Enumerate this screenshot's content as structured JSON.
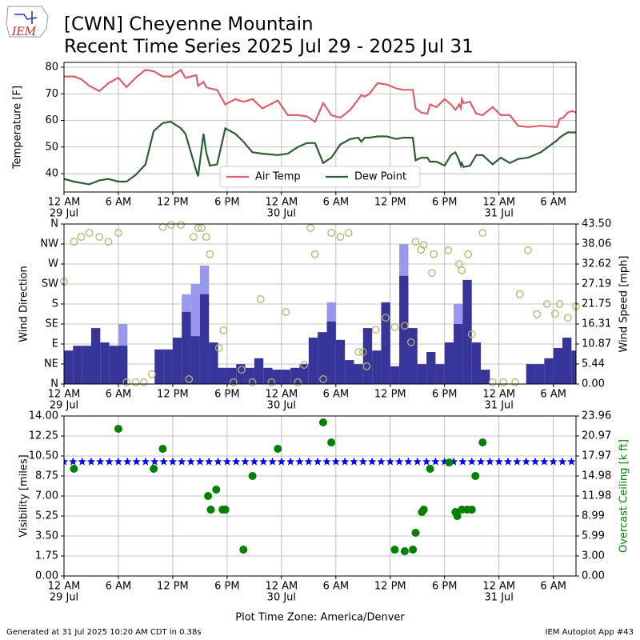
{
  "header": {
    "title": "[CWN] Cheyenne Mountain",
    "subtitle": "Recent Time Series 2025 Jul 29 - 2025 Jul 31",
    "logo": "IEM"
  },
  "footer": {
    "left": "Generated at 31 Jul 2025 10:20 AM CDT in 0.38s",
    "right": "IEM Autoplot App #43"
  },
  "chart_data": [
    {
      "type": "line",
      "ylabel": "Temperature [F]",
      "legend": "lower center",
      "grid": true,
      "xlim": [
        0,
        56.5
      ],
      "ylim": [
        33.1,
        81.8
      ],
      "yticks": [
        40,
        50,
        60,
        70,
        80
      ],
      "xticks": [
        {
          "value": 0,
          "label": "12 AM"
        },
        {
          "value": 6,
          "label": "6 AM"
        },
        {
          "value": 12,
          "label": "12 PM"
        },
        {
          "value": 18,
          "label": "6 PM"
        },
        {
          "value": 24,
          "label": "12 AM"
        },
        {
          "value": 30,
          "label": "6 AM"
        },
        {
          "value": 36,
          "label": "12 PM"
        },
        {
          "value": 42,
          "label": "6 PM"
        },
        {
          "value": 48,
          "label": "12 AM"
        },
        {
          "value": 54,
          "label": "6 AM"
        }
      ],
      "xdates": [
        {
          "value": 0,
          "label": "29 Jul"
        },
        {
          "value": 24,
          "label": "30 Jul"
        },
        {
          "value": 48,
          "label": "31 Jul"
        }
      ],
      "x": [
        0,
        1.1,
        1.9,
        2.8,
        3.9,
        4.9,
        6,
        6.9,
        7.9,
        9,
        9.9,
        10.9,
        11.8,
        12.9,
        13.4,
        14.6,
        14.8,
        15.4,
        15.7,
        16.1,
        16.9,
        17.8,
        18.9,
        19.8,
        20.8,
        21.9,
        23.6,
        24.7,
        25.8,
        26.8,
        27.7,
        28.6,
        29.5,
        30.5,
        31.6,
        32.5,
        32.8,
        33.2,
        33.7,
        34.6,
        35.6,
        36.7,
        37.4,
        38.5,
        38.8,
        39.4,
        40.1,
        40.4,
        41.1,
        42,
        42.7,
        43.2,
        43.6,
        43.8,
        43.9,
        44.1,
        44.8,
        45.5,
        46.2,
        47.3,
        48.2,
        49.2,
        50.1,
        51.2,
        52.6,
        54.4,
        54.7,
        55.1,
        55.6,
        56.1,
        56.5
      ],
      "series": [
        {
          "name": "Air Temp",
          "color": "#d9606a",
          "values": [
            76.5,
            76.5,
            75.5,
            73,
            71,
            74,
            76,
            72.5,
            76,
            79,
            78.5,
            76.5,
            76.5,
            79,
            76,
            77,
            73,
            74.5,
            72.5,
            72,
            71.5,
            66,
            68,
            67,
            68,
            64.5,
            67.5,
            62,
            62,
            61.5,
            59.5,
            66.5,
            62,
            61,
            64,
            68,
            69.5,
            69,
            70,
            74,
            73.5,
            72,
            71.5,
            71.5,
            64.5,
            63,
            62.5,
            66,
            65,
            68,
            66,
            64,
            66,
            64.5,
            68,
            66.5,
            67,
            62.5,
            62,
            65,
            62,
            62,
            58,
            57.5,
            58,
            57.5,
            60.5,
            61,
            63,
            63.5,
            63
          ]
        },
        {
          "name": "Dew Point",
          "color": "#2e5e30",
          "values": [
            38,
            37,
            36.5,
            36,
            37.5,
            38,
            37,
            37,
            39.5,
            43.5,
            56,
            59,
            59.5,
            57,
            55,
            41,
            39,
            55,
            48,
            43,
            43.5,
            57,
            55,
            52,
            48,
            47.5,
            47,
            47.5,
            50,
            51.5,
            51.5,
            44,
            46,
            51,
            53,
            53.5,
            52,
            53.5,
            53.5,
            54,
            54,
            53,
            53.5,
            53.5,
            45,
            46,
            46,
            44.5,
            44.5,
            43,
            47,
            48,
            45,
            43,
            44,
            42.5,
            43,
            47,
            47,
            43.5,
            46,
            44,
            45.5,
            46,
            48,
            52.5,
            53.5,
            54.5,
            55.5,
            55.5,
            55.5
          ]
        }
      ]
    },
    {
      "type": "bar",
      "ylabel": "Wind Direction",
      "y2label": "Wind Speed [mph]",
      "grid": true,
      "xlim": [
        0,
        56.5
      ],
      "ylim": [
        0,
        360
      ],
      "y2lim": [
        0,
        43.5
      ],
      "yticks": [
        {
          "value": 0,
          "label": "N"
        },
        {
          "value": 45,
          "label": "NE"
        },
        {
          "value": 90,
          "label": "E"
        },
        {
          "value": 135,
          "label": "SE"
        },
        {
          "value": 180,
          "label": "S"
        },
        {
          "value": 225,
          "label": "SW"
        },
        {
          "value": 270,
          "label": "W"
        },
        {
          "value": 315,
          "label": "NW"
        },
        {
          "value": 360,
          "label": "N"
        }
      ],
      "y2ticks": [
        {
          "value": 0,
          "label": "0.00"
        },
        {
          "value": 5.44,
          "label": "5.44"
        },
        {
          "value": 10.87,
          "label": "10.87"
        },
        {
          "value": 16.31,
          "label": "16.31"
        },
        {
          "value": 21.75,
          "label": "21.75"
        },
        {
          "value": 27.19,
          "label": "27.19"
        },
        {
          "value": 32.62,
          "label": "32.62"
        },
        {
          "value": 38.06,
          "label": "38.06"
        },
        {
          "value": 43.5,
          "label": "43.50"
        }
      ],
      "xticks": [
        {
          "value": 0,
          "label": "12 AM"
        },
        {
          "value": 6,
          "label": "6 AM"
        },
        {
          "value": 12,
          "label": "12 PM"
        },
        {
          "value": 18,
          "label": "6 PM"
        },
        {
          "value": 24,
          "label": "12 AM"
        },
        {
          "value": 30,
          "label": "6 AM"
        },
        {
          "value": 36,
          "label": "12 PM"
        },
        {
          "value": 42,
          "label": "6 PM"
        },
        {
          "value": 48,
          "label": "12 AM"
        },
        {
          "value": 54,
          "label": "6 AM"
        }
      ],
      "xdates": [
        {
          "value": 0,
          "label": "29 Jul"
        },
        {
          "value": 24,
          "label": "30 Jul"
        },
        {
          "value": 48,
          "label": "31 Jul"
        }
      ],
      "x": [
        0,
        1,
        2,
        3,
        4,
        5,
        6,
        7,
        8,
        9,
        10,
        11,
        12,
        13,
        14,
        15,
        16,
        17,
        18,
        19,
        20,
        21,
        22,
        23,
        24,
        25,
        26,
        27,
        28,
        29,
        30,
        31,
        32,
        33,
        34,
        35,
        36,
        37,
        38,
        39,
        40,
        41,
        42,
        43,
        44,
        45,
        46,
        47,
        48,
        49,
        50,
        51,
        52,
        53,
        54,
        55,
        56
      ],
      "series": [
        {
          "color": "#9a98ee",
          "axis": "y2",
          "values": [
            null,
            null,
            null,
            null,
            null,
            null,
            16.3,
            null,
            null,
            null,
            null,
            null,
            null,
            24.4,
            27.2,
            32.2,
            null,
            null,
            null,
            null,
            null,
            null,
            null,
            null,
            null,
            null,
            null,
            null,
            null,
            22.2,
            null,
            null,
            null,
            null,
            null,
            null,
            null,
            38,
            null,
            null,
            null,
            null,
            null,
            21.8,
            null,
            null,
            null,
            null,
            null,
            null,
            null,
            null,
            null,
            null,
            null,
            null,
            null
          ]
        },
        {
          "color": "#373599",
          "axis": "y2",
          "values": [
            9.1,
            10.4,
            10.4,
            15.2,
            11.3,
            10.4,
            10.4,
            0,
            0,
            0,
            9.4,
            9.4,
            12.6,
            19.6,
            13,
            24.4,
            11.3,
            4.4,
            4.4,
            5.4,
            4.4,
            7,
            4.4,
            3.9,
            3.9,
            4.4,
            5.4,
            12.6,
            14.1,
            17,
            12,
            6.5,
            5.4,
            15.2,
            9.1,
            22.2,
            4.8,
            29.4,
            15.2,
            5.4,
            8.7,
            5.4,
            11.3,
            16.3,
            28.3,
            11.3,
            3.9,
            0,
            0,
            0,
            0,
            5.4,
            5.4,
            7,
            9.8,
            12.6,
            9.1
          ]
        }
      ],
      "scatter": {
        "color": "#b3b56e",
        "x": [
          0,
          1.1,
          1.9,
          2.8,
          3.9,
          4.9,
          6,
          6.9,
          7.9,
          8.8,
          9.7,
          10.9,
          11.8,
          12.9,
          13.8,
          14.3,
          14.8,
          15.2,
          15.7,
          16.1,
          17.1,
          17.6,
          18.7,
          19.6,
          20.8,
          21.7,
          22.9,
          24.5,
          25.8,
          26.5,
          27.2,
          27.7,
          28.6,
          29.5,
          30.5,
          31.4,
          32.5,
          33,
          33.4,
          34.4,
          35.5,
          36.5,
          37.6,
          38.3,
          38.8,
          39.4,
          39.7,
          40.6,
          40.8,
          42.4,
          43.6,
          43.9,
          44.6,
          45,
          46.2,
          47.3,
          48.5,
          49.8,
          50.3,
          51.2,
          52.2,
          53.3,
          54.2,
          54.7,
          55.6,
          56.5
        ],
        "values": [
          230,
          320,
          331,
          340,
          331,
          320,
          340,
          4,
          4,
          4,
          22,
          353,
          358,
          358,
          11,
          331,
          351,
          351,
          331,
          292,
          81,
          121,
          4,
          32,
          4,
          191,
          4,
          162,
          4,
          43,
          351,
          292,
          11,
          340,
          331,
          340,
          72,
          72,
          40,
          122,
          149,
          128,
          131,
          94,
          320,
          302,
          313,
          250,
          292,
          301,
          270,
          256,
          292,
          112,
          340,
          4,
          4,
          4,
          202,
          301,
          157,
          180,
          158,
          180,
          149,
          175
        ]
      }
    },
    {
      "type": "scatter",
      "ylabel": "Visibility [miles]",
      "y2label": "Overcast Ceiling [k ft]",
      "xlabel": "Plot Time Zone: America/Denver",
      "grid": true,
      "xlim": [
        0,
        56.5
      ],
      "ylim": [
        0,
        14
      ],
      "y2lim": [
        0,
        23.96
      ],
      "yticks": [
        {
          "value": 0,
          "label": "0.00"
        },
        {
          "value": 1.75,
          "label": "1.75"
        },
        {
          "value": 3.5,
          "label": "3.50"
        },
        {
          "value": 5.25,
          "label": "5.25"
        },
        {
          "value": 7,
          "label": "7.00"
        },
        {
          "value": 8.75,
          "label": "8.75"
        },
        {
          "value": 10.5,
          "label": "10.50"
        },
        {
          "value": 12.25,
          "label": "12.25"
        },
        {
          "value": 14,
          "label": "14.00"
        }
      ],
      "y2ticks": [
        {
          "value": 0,
          "label": "0.00"
        },
        {
          "value": 3,
          "label": "3.00"
        },
        {
          "value": 5.99,
          "label": "5.99"
        },
        {
          "value": 8.99,
          "label": "8.99"
        },
        {
          "value": 11.98,
          "label": "11.98"
        },
        {
          "value": 14.98,
          "label": "14.98"
        },
        {
          "value": 17.97,
          "label": "17.97"
        },
        {
          "value": 20.97,
          "label": "20.97"
        },
        {
          "value": 23.96,
          "label": "23.96"
        }
      ],
      "xticks": [
        {
          "value": 0,
          "label": "12 AM"
        },
        {
          "value": 6,
          "label": "6 AM"
        },
        {
          "value": 12,
          "label": "12 PM"
        },
        {
          "value": 18,
          "label": "6 PM"
        },
        {
          "value": 24,
          "label": "12 AM"
        },
        {
          "value": 30,
          "label": "6 AM"
        },
        {
          "value": 36,
          "label": "12 PM"
        },
        {
          "value": 42,
          "label": "6 PM"
        },
        {
          "value": 48,
          "label": "12 AM"
        },
        {
          "value": 54,
          "label": "6 AM"
        }
      ],
      "xdates": [
        {
          "value": 0,
          "label": "29 Jul"
        },
        {
          "value": 24,
          "label": "30 Jul"
        },
        {
          "value": 48,
          "label": "31 Jul"
        }
      ],
      "x": [
        0,
        1,
        2,
        3,
        4,
        5,
        6,
        7,
        8,
        9,
        10,
        11,
        12,
        13,
        14,
        15,
        16,
        17,
        18,
        19,
        20,
        21,
        22,
        23,
        24,
        25,
        26,
        27,
        28,
        29,
        30,
        31,
        32,
        33,
        34,
        35,
        36,
        37,
        38,
        39,
        40,
        41,
        42,
        43,
        44,
        45,
        46,
        47,
        48,
        49,
        50,
        51,
        52,
        53,
        54,
        55,
        56
      ],
      "series": [
        {
          "color": "#0000ff",
          "marker": "star",
          "values": [
            10,
            10,
            10,
            10,
            10,
            10,
            10,
            10,
            10,
            10,
            10,
            10,
            10,
            10,
            10,
            10,
            10,
            10,
            10,
            10,
            10,
            10,
            10,
            10,
            10,
            10,
            10,
            10,
            10,
            10,
            10,
            10,
            10,
            10,
            10,
            10,
            10,
            10,
            10,
            10,
            10,
            10,
            10,
            10,
            10,
            10,
            10,
            10,
            10,
            10,
            10,
            10,
            10,
            10,
            10,
            10,
            10
          ]
        },
        {
          "color": "#008000",
          "marker": "circle",
          "axis": "y2",
          "x": [
            1.1,
            6,
            9.9,
            10.9,
            15.9,
            16.2,
            16.8,
            17.5,
            17.8,
            19.8,
            20.8,
            23.6,
            28.6,
            29.5,
            36.5,
            37.6,
            38.5,
            38.8,
            39.5,
            39.7,
            40.4,
            42.5,
            43.2,
            43.4,
            43.9,
            44.5,
            45,
            45.4,
            46.2
          ],
          "values": [
            16.05,
            22.04,
            16.05,
            19.05,
            11.98,
            9.94,
            12.94,
            9.94,
            9.94,
            3.95,
            14.98,
            19.05,
            23.0,
            20.0,
            3.95,
            3.71,
            3.95,
            6.47,
            9.58,
            9.94,
            16.05,
            17.0,
            9.58,
            8.98,
            9.94,
            9.94,
            9.94,
            14.98,
            20.0
          ]
        }
      ]
    }
  ]
}
